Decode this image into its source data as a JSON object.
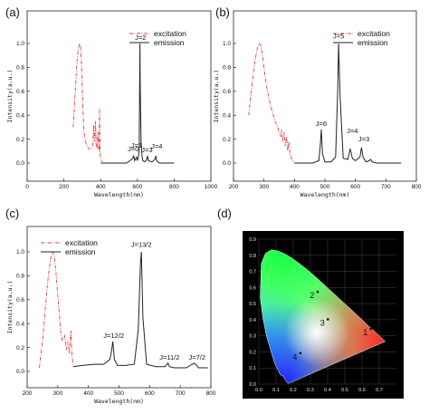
{
  "panels": {
    "a": "(a)",
    "b": "(b)",
    "c": "(c)",
    "d": "(d)"
  },
  "chart_data": [
    {
      "id": "a",
      "type": "line",
      "xlabel": "Wavelength(nm)",
      "ylabel": "Intensity(a.u.)",
      "xlim": [
        0,
        1000
      ],
      "ylim": [
        0,
        1.0
      ],
      "xticks": [
        0,
        200,
        400,
        600,
        800,
        1000
      ],
      "yticks": [
        0.0,
        0.2,
        0.4,
        0.6,
        0.8,
        1.0
      ],
      "legend": [
        "excitation",
        "emission"
      ],
      "legend_position": "top-right",
      "series": [
        {
          "name": "excitation",
          "color": "#e04040",
          "style": "dashdot",
          "x": [
            250,
            255,
            262,
            270,
            278,
            285,
            290,
            295,
            300,
            305,
            310,
            318,
            325,
            335,
            345,
            352,
            358,
            362,
            365,
            368,
            372,
            376,
            380,
            384,
            388,
            391,
            394,
            397,
            400,
            404,
            408
          ],
          "y": [
            0.3,
            0.42,
            0.6,
            0.82,
            0.95,
            1.0,
            0.98,
            0.85,
            0.62,
            0.4,
            0.25,
            0.18,
            0.14,
            0.12,
            0.12,
            0.13,
            0.15,
            0.32,
            0.2,
            0.18,
            0.35,
            0.15,
            0.12,
            0.26,
            0.14,
            0.1,
            0.46,
            0.08,
            0.05,
            0.03,
            0.01
          ]
        },
        {
          "name": "emission",
          "color": "#222222",
          "style": "solid",
          "x": [
            400,
            450,
            500,
            540,
            560,
            575,
            580,
            585,
            595,
            600,
            605,
            610,
            614,
            616,
            620,
            625,
            630,
            640,
            650,
            655,
            660,
            680,
            695,
            700,
            705,
            720,
            800
          ],
          "y": [
            0.0,
            0.0,
            0.0,
            0.0,
            0.02,
            0.04,
            0.06,
            0.02,
            0.05,
            0.02,
            0.05,
            0.1,
            1.0,
            0.6,
            0.18,
            0.06,
            0.02,
            0.01,
            0.03,
            0.06,
            0.02,
            0.01,
            0.03,
            0.06,
            0.02,
            0.0,
            0.0
          ]
        }
      ],
      "annotations": [
        "J=2",
        "J=0",
        "J=1",
        "J=3",
        "J=4"
      ]
    },
    {
      "id": "b",
      "type": "line",
      "xlabel": "Wavelength(nm)",
      "ylabel": "Intensity(a.u.)",
      "xlim": [
        200,
        800
      ],
      "ylim": [
        0,
        1.0
      ],
      "xticks": [
        200,
        300,
        400,
        500,
        600,
        700,
        800
      ],
      "yticks": [
        0.0,
        0.2,
        0.4,
        0.6,
        0.8,
        1.0
      ],
      "legend": [
        "excitation",
        "emission"
      ],
      "legend_position": "top-right",
      "series": [
        {
          "name": "excitation",
          "color": "#e04040",
          "style": "dashdot",
          "x": [
            250,
            255,
            262,
            270,
            278,
            285,
            290,
            295,
            300,
            305,
            310,
            318,
            325,
            335,
            345,
            350,
            355,
            358,
            362,
            366,
            370,
            374,
            378,
            382,
            386,
            390,
            395,
            400
          ],
          "y": [
            0.4,
            0.52,
            0.68,
            0.85,
            0.96,
            1.0,
            0.98,
            0.9,
            0.8,
            0.7,
            0.62,
            0.52,
            0.45,
            0.36,
            0.3,
            0.26,
            0.22,
            0.28,
            0.18,
            0.26,
            0.14,
            0.22,
            0.1,
            0.18,
            0.06,
            0.04,
            0.02,
            0.0
          ]
        },
        {
          "name": "emission",
          "color": "#222222",
          "style": "solid",
          "x": [
            400,
            460,
            480,
            485,
            488,
            492,
            500,
            520,
            535,
            542,
            545,
            550,
            560,
            575,
            583,
            590,
            600,
            615,
            620,
            625,
            635,
            645,
            650,
            655,
            670,
            700,
            750
          ],
          "y": [
            0.0,
            0.0,
            0.02,
            0.15,
            0.28,
            0.08,
            0.01,
            0.01,
            0.05,
            0.6,
            1.0,
            0.55,
            0.04,
            0.03,
            0.12,
            0.04,
            0.02,
            0.05,
            0.13,
            0.05,
            0.01,
            0.02,
            0.03,
            0.01,
            0.0,
            0.0,
            0.0
          ]
        }
      ],
      "annotations": [
        "J=5",
        "J=6",
        "J=4",
        "J=3"
      ]
    },
    {
      "id": "c",
      "type": "line",
      "xlabel": "Wavelength(nm)",
      "ylabel": "Intensity(a.u.)",
      "xlim": [
        200,
        800
      ],
      "ylim": [
        0,
        1.0
      ],
      "xticks": [
        200,
        300,
        400,
        500,
        600,
        700,
        800
      ],
      "yticks": [
        0.0,
        0.2,
        0.4,
        0.6,
        0.8,
        1.0
      ],
      "legend": [
        "excitation",
        "emission"
      ],
      "legend_position": "top-left",
      "series": [
        {
          "name": "excitation",
          "color": "#e04040",
          "style": "dashdot",
          "x": [
            240,
            245,
            252,
            258,
            265,
            272,
            278,
            283,
            288,
            293,
            298,
            303,
            310,
            315,
            322,
            328,
            333,
            338,
            343,
            346,
            350
          ],
          "y": [
            0.03,
            0.14,
            0.3,
            0.48,
            0.7,
            0.86,
            0.96,
            1.0,
            0.97,
            0.86,
            0.7,
            0.55,
            0.32,
            0.26,
            0.3,
            0.18,
            0.25,
            0.15,
            0.34,
            0.15,
            0.05
          ]
        },
        {
          "name": "emission",
          "color": "#222222",
          "style": "solid",
          "x": [
            350,
            380,
            420,
            450,
            470,
            476,
            480,
            485,
            495,
            520,
            550,
            563,
            570,
            573,
            578,
            590,
            620,
            650,
            660,
            665,
            680,
            720,
            745,
            750,
            760,
            790
          ],
          "y": [
            0.04,
            0.05,
            0.06,
            0.06,
            0.1,
            0.18,
            0.25,
            0.1,
            0.05,
            0.05,
            0.06,
            0.35,
            0.9,
            1.0,
            0.45,
            0.06,
            0.04,
            0.04,
            0.07,
            0.04,
            0.03,
            0.03,
            0.07,
            0.06,
            0.03,
            0.03
          ]
        }
      ],
      "annotations": [
        "J=13/2",
        "J=12/2",
        "J=11/2",
        "J=7/2"
      ]
    },
    {
      "id": "d",
      "type": "scatter",
      "title": "",
      "xlim": [
        0.0,
        0.8
      ],
      "ylim": [
        0.0,
        0.9
      ],
      "xticks": [
        0.0,
        0.1,
        0.2,
        0.3,
        0.4,
        0.5,
        0.6,
        0.7
      ],
      "yticks": [
        0.0,
        0.1,
        0.2,
        0.3,
        0.4,
        0.5,
        0.6,
        0.7,
        0.8,
        0.9
      ],
      "background": "#000000",
      "points": [
        {
          "label": "1",
          "x": 0.62,
          "y": 0.32
        },
        {
          "label": "2",
          "x": 0.31,
          "y": 0.55
        },
        {
          "label": "3",
          "x": 0.37,
          "y": 0.38
        },
        {
          "label": "4",
          "x": 0.21,
          "y": 0.17
        }
      ]
    }
  ]
}
